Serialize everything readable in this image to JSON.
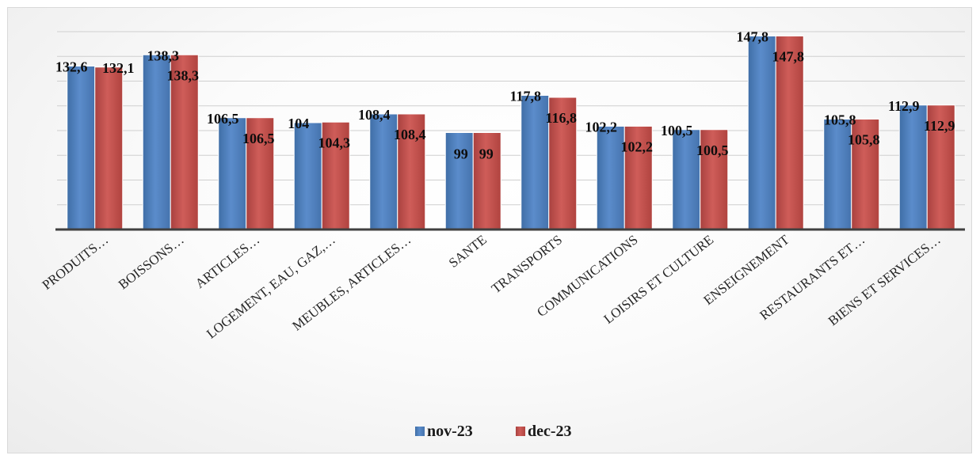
{
  "chart_data": {
    "type": "bar",
    "categories": [
      "PRODUITS…",
      "BOISSONS…",
      "ARTICLES…",
      "LOGEMENT, EAU, GAZ,…",
      "MEUBLES, ARTICLES…",
      "SANTE",
      "TRANSPORTS",
      "COMMUNICATIONS",
      "LOISIRS ET CULTURE",
      "ENSEIGNEMENT",
      "RESTAURANTS ET…",
      "BIENS ET SERVICES…"
    ],
    "series": [
      {
        "name": "nov-23",
        "color": "#4f81bd",
        "values": [
          132.6,
          138.3,
          106.5,
          104,
          108.4,
          99,
          117.8,
          102.2,
          100.5,
          147.8,
          105.8,
          112.9
        ],
        "labels": [
          "132,6",
          "138,3",
          "106,5",
          "104",
          "108,4",
          "99",
          "117,8",
          "102,2",
          "100,5",
          "147,8",
          "105,8",
          "112,9"
        ]
      },
      {
        "name": "dec-23",
        "color": "#c0504d",
        "values": [
          132.1,
          138.3,
          106.5,
          104.3,
          108.4,
          99,
          116.8,
          102.2,
          100.5,
          147.8,
          105.8,
          112.9
        ],
        "labels": [
          "132,1",
          "138,3",
          "106,5",
          "104,3",
          "108,4",
          "99",
          "116,8",
          "102,2",
          "100,5",
          "147,8",
          "105,8",
          "112,9"
        ]
      }
    ],
    "ylim": [
      50,
      150
    ],
    "grid": true,
    "legend_position": "bottom"
  }
}
